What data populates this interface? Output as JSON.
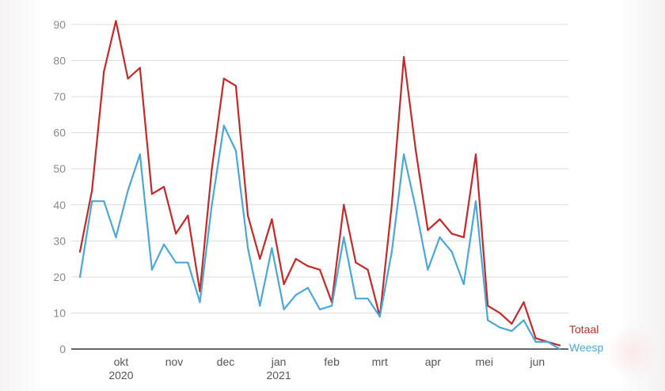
{
  "chart_data": {
    "type": "line",
    "title": "",
    "xlabel": "",
    "ylabel": "",
    "ylim": [
      0,
      90
    ],
    "yticks": [
      0,
      10,
      20,
      30,
      40,
      50,
      60,
      70,
      80,
      90
    ],
    "grid": true,
    "legend": "end-of-line labels, right",
    "x_start_date": "2020-09-07",
    "x_step_days": 7,
    "x_tick_labels": [
      {
        "date": "2020-10-01",
        "label": "okt",
        "sublabel": "2020"
      },
      {
        "date": "2020-11-01",
        "label": "nov",
        "sublabel": ""
      },
      {
        "date": "2020-12-01",
        "label": "dec",
        "sublabel": ""
      },
      {
        "date": "2021-01-01",
        "label": "jan",
        "sublabel": "2021"
      },
      {
        "date": "2021-02-01",
        "label": "feb",
        "sublabel": ""
      },
      {
        "date": "2021-03-01",
        "label": "mrt",
        "sublabel": ""
      },
      {
        "date": "2021-04-01",
        "label": "apr",
        "sublabel": ""
      },
      {
        "date": "2021-05-01",
        "label": "mei",
        "sublabel": ""
      },
      {
        "date": "2021-06-01",
        "label": "jun",
        "sublabel": ""
      }
    ],
    "series": [
      {
        "name": "Totaal",
        "color": "#c62828",
        "values": [
          27,
          44,
          77,
          91,
          75,
          78,
          43,
          45,
          32,
          37,
          16,
          50,
          75,
          73,
          37,
          25,
          36,
          18,
          25,
          23,
          22,
          13,
          40,
          24,
          22,
          9,
          40,
          81,
          55,
          33,
          36,
          32,
          31,
          54,
          12,
          10,
          7,
          13,
          3,
          2,
          1
        ]
      },
      {
        "name": "Weesp",
        "color": "#4aa8d8",
        "values": [
          20,
          41,
          41,
          31,
          44,
          54,
          22,
          29,
          24,
          24,
          13,
          40,
          62,
          55,
          28,
          12,
          28,
          11,
          15,
          17,
          11,
          12,
          31,
          14,
          14,
          9,
          27,
          54,
          39,
          22,
          31,
          27,
          18,
          41,
          8,
          6,
          5,
          8,
          2,
          2,
          0
        ]
      }
    ]
  }
}
